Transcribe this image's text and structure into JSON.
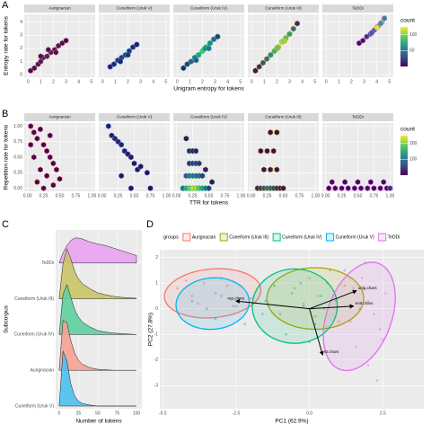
{
  "chart_data": [
    {
      "type": "hexbin",
      "panel_label": "A",
      "xlabel": "Unigram entropy for tokens",
      "ylabel": "Entropy rate for tokens",
      "xlim": [
        -0.3,
        5.3
      ],
      "xticks": [
        0,
        1,
        2,
        3,
        4,
        5
      ],
      "ylim": [
        -0.2,
        4.6
      ],
      "yticks": [
        0,
        1,
        2,
        3,
        4
      ],
      "colorbar": {
        "title": "count",
        "colors": [
          "#440154",
          "#3b528b",
          "#21908d",
          "#5dc963",
          "#fde725"
        ],
        "lim": [
          0,
          125
        ],
        "ticks": [
          50,
          100
        ]
      },
      "facets": [
        {
          "name": "Aurignacian",
          "color": "#f8766d",
          "x": [
            0.2,
            0.5,
            0.8,
            1.0,
            1.2,
            1.5,
            1.8,
            2.1,
            2.4,
            2.7,
            3.0,
            1.0,
            1.6,
            2.2
          ],
          "y": [
            0.3,
            0.5,
            0.8,
            1.0,
            1.3,
            1.4,
            1.7,
            1.9,
            2.2,
            2.4,
            2.6,
            1.4,
            1.9,
            1.7
          ],
          "count": [
            3,
            5,
            8,
            10,
            12,
            15,
            12,
            10,
            8,
            5,
            3,
            6,
            8,
            6
          ]
        },
        {
          "name": "Cuneiform (Uruk V)",
          "color": "#00b0f6",
          "x": [
            0.6,
            0.9,
            1.2,
            1.5,
            1.8,
            2.1,
            2.4,
            2.7,
            1.4,
            2.0
          ],
          "y": [
            0.6,
            0.8,
            1.1,
            1.3,
            1.5,
            1.8,
            2.1,
            2.3,
            1.0,
            1.5
          ],
          "count": [
            5,
            10,
            15,
            20,
            20,
            15,
            10,
            5,
            8,
            12
          ]
        },
        {
          "name": "Cuneiform (Uruk IV)",
          "color": "#00bf7d",
          "x": [
            0.5,
            0.8,
            1.1,
            1.4,
            1.7,
            2.0,
            2.3,
            2.6,
            2.9,
            3.2,
            1.5,
            2.2,
            2.5
          ],
          "y": [
            0.5,
            0.8,
            1.0,
            1.3,
            1.5,
            1.8,
            2.1,
            2.4,
            2.7,
            2.9,
            1.1,
            2.0,
            2.0
          ],
          "count": [
            10,
            20,
            35,
            50,
            70,
            90,
            80,
            60,
            40,
            20,
            30,
            60,
            45
          ]
        },
        {
          "name": "Cuneiform (Uruk III)",
          "color": "#a3a500",
          "x": [
            0.3,
            0.6,
            0.9,
            1.2,
            1.5,
            1.8,
            2.1,
            2.4,
            2.7,
            3.0,
            3.3,
            3.6,
            2.0,
            2.6
          ],
          "y": [
            0.3,
            0.6,
            0.9,
            1.2,
            1.5,
            1.8,
            2.1,
            2.5,
            2.8,
            3.1,
            3.5,
            3.9,
            2.0,
            2.6
          ],
          "count": [
            5,
            15,
            30,
            45,
            60,
            80,
            100,
            110,
            90,
            70,
            40,
            15,
            95,
            105
          ]
        },
        {
          "name": "TeDDi",
          "color": "#e76bf3",
          "x": [
            2.6,
            2.9,
            3.2,
            3.5,
            3.8,
            4.1,
            4.4,
            4.6,
            3.6,
            4.0,
            4.3
          ],
          "y": [
            2.4,
            2.6,
            2.9,
            3.1,
            3.4,
            3.7,
            4.0,
            4.3,
            3.2,
            3.6,
            3.9
          ],
          "count": [
            5,
            10,
            20,
            30,
            50,
            80,
            100,
            60,
            40,
            120,
            70
          ]
        }
      ]
    },
    {
      "type": "hexbin",
      "panel_label": "B",
      "xlabel": "TTR for tokens",
      "ylabel": "Repetition rate for tokens",
      "xlim": [
        -0.05,
        1.05
      ],
      "xticks": [
        {
          "value": 0,
          "label": "0.00"
        },
        {
          "value": 0.25,
          "label": "0.25"
        },
        {
          "value": 0.5,
          "label": "0.50"
        },
        {
          "value": 0.75,
          "label": "0.75"
        },
        {
          "value": 1,
          "label": "1.00"
        }
      ],
      "ylim": [
        -0.05,
        1.05
      ],
      "yticks": [
        {
          "value": 0,
          "label": "0.00"
        },
        {
          "value": 0.25,
          "label": "0.25"
        },
        {
          "value": 0.5,
          "label": "0.50"
        },
        {
          "value": 0.75,
          "label": "0.75"
        },
        {
          "value": 1,
          "label": "1.00"
        }
      ],
      "colorbar": {
        "title": "count",
        "colors": [
          "#440154",
          "#3b528b",
          "#21908d",
          "#5dc963",
          "#fde725"
        ],
        "lim": [
          0,
          250
        ],
        "ticks": [
          100,
          200
        ]
      },
      "facets": [
        {
          "name": "Aurignacian",
          "color": "#f8766d",
          "x": [
            0.05,
            0.1,
            0.15,
            0.2,
            0.25,
            0.3,
            0.35,
            0.4,
            0.45,
            0.1,
            0.2,
            0.3,
            0.15,
            0.25,
            0.4,
            0.05,
            0.35,
            0.5
          ],
          "y": [
            1.0,
            0.9,
            0.8,
            0.95,
            0.7,
            0.6,
            0.5,
            0.4,
            0.3,
            0.5,
            0.3,
            0.2,
            0.1,
            0.0,
            0.05,
            0.7,
            0.85,
            0.15
          ],
          "count": [
            5,
            8,
            6,
            4,
            5,
            3,
            3,
            2,
            2,
            5,
            4,
            3,
            5,
            6,
            3,
            4,
            2,
            2
          ]
        },
        {
          "name": "Cuneiform (Uruk V)",
          "color": "#00b0f6",
          "x": [
            0.1,
            0.15,
            0.2,
            0.25,
            0.3,
            0.35,
            0.4,
            0.45,
            0.5,
            0.55,
            0.6,
            0.7,
            0.75,
            0.3,
            0.45
          ],
          "y": [
            1.0,
            0.85,
            0.8,
            0.75,
            0.7,
            0.6,
            0.55,
            0.5,
            0.4,
            0.3,
            0.35,
            0.25,
            0.0,
            0.2,
            0.0
          ],
          "count": [
            10,
            15,
            20,
            18,
            15,
            12,
            10,
            8,
            6,
            5,
            4,
            3,
            2,
            6,
            3
          ]
        },
        {
          "name": "Cuneiform (Uruk IV)",
          "color": "#00bf7d",
          "x": [
            0.1,
            0.15,
            0.2,
            0.25,
            0.3,
            0.35,
            0.4,
            0.45,
            0.5,
            0.15,
            0.2,
            0.25,
            0.3,
            0.35,
            0.4,
            0.2,
            0.25,
            0.3,
            0.35,
            0.2,
            0.25,
            0.3,
            0.15,
            0.45,
            0.55
          ],
          "y": [
            0.0,
            0.0,
            0.0,
            0.0,
            0.0,
            0.0,
            0.0,
            0.0,
            0.0,
            0.2,
            0.2,
            0.2,
            0.2,
            0.2,
            0.2,
            0.4,
            0.4,
            0.4,
            0.4,
            0.6,
            0.6,
            0.6,
            0.8,
            0.3,
            0.1
          ],
          "count": [
            80,
            150,
            200,
            230,
            220,
            180,
            140,
            90,
            40,
            60,
            80,
            90,
            80,
            60,
            40,
            30,
            40,
            40,
            30,
            15,
            20,
            15,
            5,
            20,
            10
          ]
        },
        {
          "name": "Cuneiform (Uruk III)",
          "color": "#a3a500",
          "x": [
            0.1,
            0.15,
            0.2,
            0.25,
            0.3,
            0.35,
            0.4,
            0.45,
            0.5,
            0.2,
            0.3,
            0.4,
            0.15,
            0.25,
            0.35,
            0.3,
            0.4
          ],
          "y": [
            0.0,
            0.0,
            0.0,
            0.0,
            0.0,
            0.0,
            0.0,
            0.0,
            0.0,
            0.3,
            0.3,
            0.3,
            0.6,
            0.6,
            0.6,
            0.9,
            0.9
          ],
          "count": [
            20,
            40,
            60,
            80,
            70,
            50,
            30,
            20,
            10,
            10,
            12,
            8,
            5,
            6,
            4,
            3,
            2
          ]
        },
        {
          "name": "TeDDi",
          "color": "#e76bf3",
          "x": [
            0.05,
            0.15,
            0.25,
            0.35,
            0.45,
            0.55,
            0.65,
            0.75,
            0.85,
            0.95,
            0.1,
            0.3,
            0.5,
            0.7,
            0.9,
            1.0
          ],
          "y": [
            0.0,
            0.0,
            0.0,
            0.0,
            0.0,
            0.0,
            0.0,
            0.0,
            0.0,
            0.0,
            0.1,
            0.1,
            0.1,
            0.1,
            0.1,
            0.0
          ],
          "count": [
            5,
            8,
            10,
            10,
            10,
            10,
            10,
            8,
            6,
            5,
            5,
            5,
            5,
            5,
            5,
            40
          ]
        }
      ]
    },
    {
      "type": "ridgeline",
      "panel_label": "C",
      "xlabel": "Number of tokens",
      "ylabel": "Subcorpus",
      "xlim": [
        -4.5,
        107
      ],
      "xticks": [
        0,
        25,
        50,
        75,
        100
      ],
      "x": [
        0,
        5,
        10,
        15,
        20,
        25,
        30,
        40,
        50,
        60,
        70,
        80,
        90,
        100
      ],
      "series": [
        {
          "name": "TeDDi",
          "color": "#e9a3f2",
          "values": [
            0,
            0.2,
            0.35,
            0.45,
            0.5,
            0.5,
            0.48,
            0.42,
            0.38,
            0.35,
            0.3,
            0.25,
            0.2,
            0.15
          ]
        },
        {
          "name": "Cuneiform (Uruk III)",
          "color": "#c9c466",
          "values": [
            0,
            0.7,
            1.0,
            0.8,
            0.55,
            0.4,
            0.3,
            0.2,
            0.12,
            0.08,
            0.05,
            0.03,
            0.02,
            0.01
          ]
        },
        {
          "name": "Cuneiform (Uruk IV)",
          "color": "#5fcf9f",
          "values": [
            0,
            0.8,
            1.0,
            0.75,
            0.5,
            0.35,
            0.25,
            0.15,
            0.08,
            0.05,
            0.03,
            0.02,
            0.01,
            0
          ]
        },
        {
          "name": "Aurignacian",
          "color": "#f5a196",
          "values": [
            0,
            1.0,
            0.95,
            0.6,
            0.35,
            0.2,
            0.12,
            0.05,
            0.02,
            0.01,
            0,
            0,
            0,
            0
          ]
        },
        {
          "name": "Cuneiform (Uruk V)",
          "color": "#4cc0ee",
          "values": [
            0,
            1.1,
            0.9,
            0.45,
            0.2,
            0.1,
            0.05,
            0.02,
            0,
            0,
            0,
            0,
            0,
            0
          ]
        }
      ]
    },
    {
      "type": "biplot",
      "panel_label": "D",
      "legend_title": "groups",
      "xlabel": "PC1 (62.9%)",
      "ylabel": "PC2 (27.8%)",
      "xlim": [
        -5.1,
        3.9
      ],
      "xticks": [
        {
          "value": -5,
          "label": "-5.0"
        },
        {
          "value": -2.5,
          "label": "-2.5"
        },
        {
          "value": 0,
          "label": "0.0"
        },
        {
          "value": 2.5,
          "label": "2.5"
        }
      ],
      "ylim": [
        -3.9,
        2.3
      ],
      "yticks": [
        -3,
        -2,
        -1,
        0,
        1,
        2
      ],
      "series": [
        {
          "name": "Aurignacian",
          "color": "#f8766d",
          "x": [
            -4.5,
            -4.0,
            -3.6,
            -3.2,
            -2.8,
            -2.4,
            -3.8,
            -3.0,
            -2.6,
            -4.2
          ],
          "y": [
            0.8,
            0.5,
            1.0,
            0.6,
            0.9,
            0.4,
            0.2,
            1.2,
            0.1,
            1.1
          ],
          "ellipse": {
            "cx": -3.3,
            "cy": 0.6,
            "rx": 1.65,
            "ry": 0.95,
            "angle": -5
          }
        },
        {
          "name": "Cuneiform (Uruk III)",
          "color": "#a3a500",
          "x": [
            -0.5,
            0,
            0.3,
            0.6,
            0.9,
            1.2,
            0.2,
            0.7,
            -0.2,
            1.0,
            0.5
          ],
          "y": [
            0.8,
            1.2,
            0.5,
            1.0,
            0.3,
            0.9,
            -0.3,
            1.5,
            0.2,
            -0.5,
            0.0
          ],
          "ellipse": {
            "cx": 0.2,
            "cy": 0.4,
            "rx": 1.65,
            "ry": 1.2,
            "angle": 0
          }
        },
        {
          "name": "Cuneiform (Uruk IV)",
          "color": "#00bf7d",
          "x": [
            -1.5,
            -1.0,
            -0.6,
            -0.2,
            0.2,
            -0.8,
            -0.3,
            0.4,
            -1.2,
            0
          ],
          "y": [
            0.3,
            -0.2,
            0.6,
            0.1,
            -0.6,
            -1.0,
            1.0,
            0.5,
            0.9,
            -1.3
          ],
          "ellipse": {
            "cx": -0.5,
            "cy": 0.1,
            "rx": 1.45,
            "ry": 1.45,
            "angle": 0
          }
        },
        {
          "name": "Cuneiform (Uruk V)",
          "color": "#00b0f6",
          "x": [
            -4.0,
            -3.5,
            -3.0,
            -2.5,
            -2.0,
            -1.6,
            -3.2,
            -2.2
          ],
          "y": [
            0.3,
            0.0,
            0.5,
            0.1,
            0.4,
            -0.2,
            -0.4,
            -0.6
          ],
          "ellipse": {
            "cx": -3.3,
            "cy": 0.2,
            "rx": 1.25,
            "ry": 1.0,
            "angle": -5
          }
        },
        {
          "name": "TeDDi",
          "color": "#e76bf3",
          "x": [
            1.2,
            1.5,
            1.8,
            2.0,
            2.2,
            2.4,
            2.6,
            1.6,
            2.0,
            2.3,
            1.4,
            1.9,
            2.5,
            1.7
          ],
          "y": [
            1.5,
            0.8,
            1.2,
            0.3,
            -0.2,
            -0.8,
            0.6,
            -1.5,
            -2.2,
            -2.8,
            -0.5,
            1.8,
            -1.2,
            0.0
          ],
          "ellipse": {
            "cx": 1.7,
            "cy": -0.3,
            "rx": 1.1,
            "ry": 2.2,
            "angle": 20
          }
        }
      ],
      "loadings": [
        {
          "label": "rep.chars",
          "x": -2.5,
          "y": 0.3
        },
        {
          "label": "unig.chars",
          "x": 1.6,
          "y": 0.7
        },
        {
          "label": "entr.chars",
          "x": 1.5,
          "y": 0.1
        },
        {
          "label": "ttr.chars",
          "x": 0.45,
          "y": -1.8
        }
      ]
    }
  ]
}
